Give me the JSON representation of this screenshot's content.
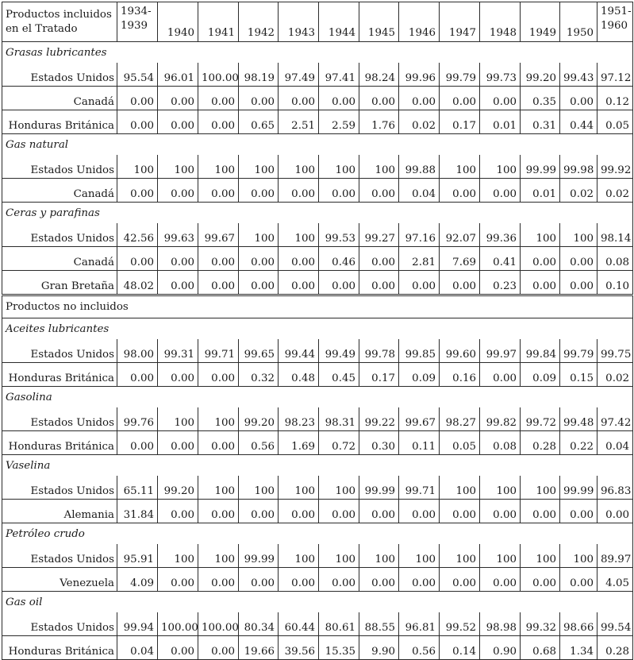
{
  "header": {
    "first_col": "Productos incluidos en el Tratado",
    "years": [
      "1934-\n1939",
      "1940",
      "1941",
      "1942",
      "1943",
      "1944",
      "1945",
      "1946",
      "1947",
      "1948",
      "1949",
      "1950",
      "1951-\n1960"
    ]
  },
  "groups": [
    {
      "type": "category",
      "name": "Grasas lubricantes",
      "rows": [
        {
          "label": "Estados Unidos",
          "values": [
            "95.54",
            "96.01",
            "100.00",
            "98.19",
            "97.49",
            "97.41",
            "98.24",
            "99.96",
            "99.79",
            "99.73",
            "99.20",
            "99.43",
            "97.12"
          ]
        },
        {
          "label": "Canadá",
          "values": [
            "0.00",
            "0.00",
            "0.00",
            "0.00",
            "0.00",
            "0.00",
            "0.00",
            "0.00",
            "0.00",
            "0.00",
            "0.35",
            "0.00",
            "0.12"
          ]
        },
        {
          "label": "Honduras Británica",
          "values": [
            "0.00",
            "0.00",
            "0.00",
            "0.65",
            "2.51",
            "2.59",
            "1.76",
            "0.02",
            "0.17",
            "0.01",
            "0.31",
            "0.44",
            "0.05"
          ]
        }
      ]
    },
    {
      "type": "category",
      "name": "Gas natural",
      "rows": [
        {
          "label": "Estados Unidos",
          "values": [
            "100",
            "100",
            "100",
            "100",
            "100",
            "100",
            "100",
            "99.88",
            "100",
            "100",
            "99.99",
            "99.98",
            "99.92"
          ]
        },
        {
          "label": "Canadá",
          "values": [
            "0.00",
            "0.00",
            "0.00",
            "0.00",
            "0.00",
            "0.00",
            "0.00",
            "0.04",
            "0.00",
            "0.00",
            "0.01",
            "0.02",
            "0.02"
          ]
        }
      ]
    },
    {
      "type": "category",
      "name": "Ceras y parafinas",
      "rows": [
        {
          "label": "Estados Unidos",
          "values": [
            "42.56",
            "99.63",
            "99.67",
            "100",
            "100",
            "99.53",
            "99.27",
            "97.16",
            "92.07",
            "99.36",
            "100",
            "100",
            "98.14"
          ]
        },
        {
          "label": "Canadá",
          "values": [
            "0.00",
            "0.00",
            "0.00",
            "0.00",
            "0.00",
            "0.46",
            "0.00",
            "2.81",
            "7.69",
            "0.41",
            "0.00",
            "0.00",
            "0.08"
          ]
        },
        {
          "label": "Gran Bretaña",
          "values": [
            "48.02",
            "0.00",
            "0.00",
            "0.00",
            "0.00",
            "0.00",
            "0.00",
            "0.00",
            "0.00",
            "0.23",
            "0.00",
            "0.00",
            "0.10"
          ]
        }
      ]
    },
    {
      "type": "section",
      "name": "Productos no incluidos"
    },
    {
      "type": "category",
      "name": "Aceites lubricantes",
      "rows": [
        {
          "label": "Estados Unidos",
          "values": [
            "98.00",
            "99.31",
            "99.71",
            "99.65",
            "99.44",
            "99.49",
            "99.78",
            "99.85",
            "99.60",
            "99.97",
            "99.84",
            "99.79",
            "99.75"
          ]
        },
        {
          "label": "Honduras Británica",
          "values": [
            "0.00",
            "0.00",
            "0.00",
            "0.32",
            "0.48",
            "0.45",
            "0.17",
            "0.09",
            "0.16",
            "0.00",
            "0.09",
            "0.15",
            "0.02"
          ]
        }
      ]
    },
    {
      "type": "category",
      "name": "Gasolina",
      "rows": [
        {
          "label": "Estados Unidos",
          "values": [
            "99.76",
            "100",
            "100",
            "99.20",
            "98.23",
            "98.31",
            "99.22",
            "99.67",
            "98.27",
            "99.82",
            "99.72",
            "99.48",
            "97.42"
          ]
        },
        {
          "label": "Honduras Británica",
          "values": [
            "0.00",
            "0.00",
            "0.00",
            "0.56",
            "1.69",
            "0.72",
            "0.30",
            "0.11",
            "0.05",
            "0.08",
            "0.28",
            "0.22",
            "0.04"
          ]
        }
      ]
    },
    {
      "type": "category",
      "name": "Vaselina",
      "rows": [
        {
          "label": "Estados Unidos",
          "values": [
            "65.11",
            "99.20",
            "100",
            "100",
            "100",
            "100",
            "99.99",
            "99.71",
            "100",
            "100",
            "100",
            "99.99",
            "96.83"
          ]
        },
        {
          "label": "Alemania",
          "values": [
            "31.84",
            "0.00",
            "0.00",
            "0.00",
            "0.00",
            "0.00",
            "0.00",
            "0.00",
            "0.00",
            "0.00",
            "0.00",
            "0.00",
            "0.00"
          ]
        }
      ]
    },
    {
      "type": "category",
      "name": "Petróleo crudo",
      "rows": [
        {
          "label": "Estados Unidos",
          "values": [
            "95.91",
            "100",
            "100",
            "99.99",
            "100",
            "100",
            "100",
            "100",
            "100",
            "100",
            "100",
            "100",
            "89.97"
          ]
        },
        {
          "label": "Venezuela",
          "values": [
            "4.09",
            "0.00",
            "0.00",
            "0.00",
            "0.00",
            "0.00",
            "0.00",
            "0.00",
            "0.00",
            "0.00",
            "0.00",
            "0.00",
            "4.05"
          ]
        }
      ]
    },
    {
      "type": "category",
      "name": "Gas oil",
      "rows": [
        {
          "label": "Estados Unidos",
          "values": [
            "99.94",
            "100.00",
            "100.00",
            "80.34",
            "60.44",
            "80.61",
            "88.55",
            "96.81",
            "99.52",
            "98.98",
            "99.32",
            "98.66",
            "99.54"
          ]
        },
        {
          "label": "Honduras Británica",
          "values": [
            "0.04",
            "0.00",
            "0.00",
            "19.66",
            "39.56",
            "15.35",
            "9.90",
            "0.56",
            "0.14",
            "0.90",
            "0.68",
            "1.34",
            "0.28"
          ]
        }
      ]
    }
  ]
}
